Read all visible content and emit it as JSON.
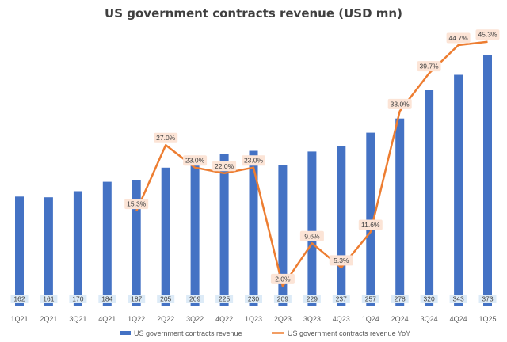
{
  "chart_data": {
    "type": "bar",
    "title": "US government contracts revenue (USD mn)",
    "categories": [
      "1Q21",
      "2Q21",
      "3Q21",
      "4Q21",
      "1Q22",
      "2Q22",
      "3Q22",
      "4Q22",
      "1Q23",
      "2Q23",
      "3Q23",
      "4Q23",
      "1Q24",
      "2Q24",
      "3Q24",
      "4Q24",
      "1Q25"
    ],
    "series": [
      {
        "name": "US government contracts revenue",
        "kind": "bar",
        "color": "#4472C4",
        "values": [
          162,
          161,
          170,
          184,
          187,
          205,
          209,
          225,
          230,
          209,
          229,
          237,
          257,
          278,
          320,
          343,
          373
        ]
      },
      {
        "name": "US government contracts revenue YoY",
        "kind": "line",
        "color": "#ED7D31",
        "start_index": 4,
        "values": [
          null,
          null,
          null,
          null,
          15.3,
          27.0,
          23.0,
          22.0,
          23.0,
          2.0,
          9.6,
          5.3,
          11.6,
          33.0,
          39.7,
          44.7,
          45.3
        ],
        "labels": [
          "",
          "",
          "",
          "",
          "15.3%",
          "27.0%",
          "23.0%",
          "22.0%",
          "23.0%",
          "2.0%",
          "9.6%",
          "5.3%",
          "11.6%",
          "33.0%",
          "39.7%",
          "44.7%",
          "45.3%"
        ]
      }
    ],
    "legend_position": "bottom",
    "grid": false,
    "label_bg_bar": "#DDEBF7",
    "label_bg_line": "#FCE4D6"
  }
}
